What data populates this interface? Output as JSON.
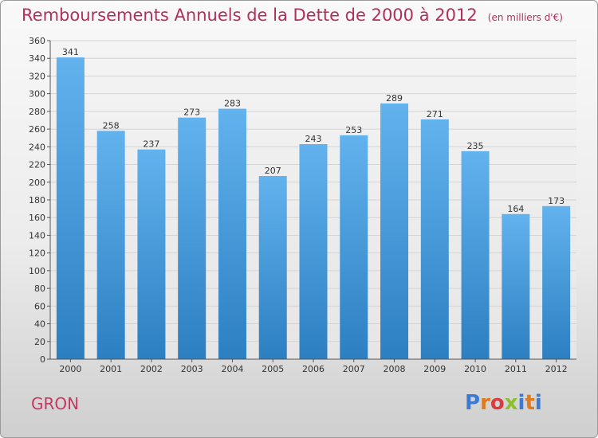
{
  "header": {
    "title": "Remboursements Annuels de la Dette de 2000 à 2012",
    "subtitle": "(en milliers d'€)"
  },
  "footer": {
    "commune": "GRON",
    "logo_text": "Proxiti"
  },
  "colors": {
    "title": "#b0305a",
    "bar_top": "#62b2ee",
    "bar_bottom": "#2c7fc1",
    "logo_letters": [
      "#3d7ad6",
      "#e07a1f",
      "#d63d3d",
      "#8dbf2e",
      "#3d7ad6",
      "#e07a1f",
      "#3d7ad6"
    ]
  },
  "chart_data": {
    "type": "bar",
    "title": "Remboursements Annuels de la Dette de 2000 à 2012",
    "subtitle": "(en milliers d'€)",
    "categories": [
      "2000",
      "2001",
      "2002",
      "2003",
      "2004",
      "2005",
      "2006",
      "2007",
      "2008",
      "2009",
      "2010",
      "2011",
      "2012"
    ],
    "values": [
      341,
      258,
      237,
      273,
      283,
      207,
      243,
      253,
      289,
      271,
      235,
      164,
      173
    ],
    "ylim": [
      0,
      360
    ],
    "yticks": [
      0,
      20,
      40,
      60,
      80,
      100,
      120,
      140,
      160,
      180,
      200,
      220,
      240,
      260,
      280,
      300,
      320,
      340,
      360
    ],
    "grid": true,
    "legend": "none"
  }
}
